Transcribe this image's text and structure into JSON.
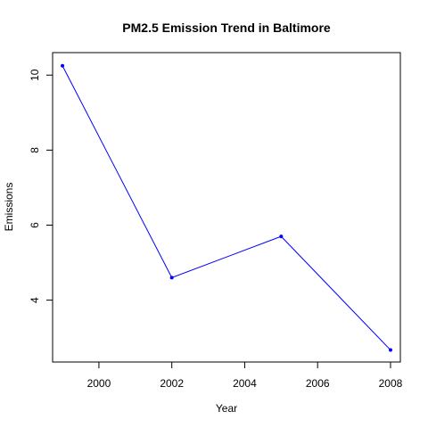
{
  "chart_data": {
    "type": "line",
    "title": "PM2.5 Emission Trend in Baltimore",
    "xlabel": "Year",
    "ylabel": "Emissions",
    "x": [
      1999,
      2002,
      2005,
      2008
    ],
    "series": [
      {
        "values": [
          10.25,
          4.6,
          5.7,
          2.67
        ],
        "color": "#0000ff"
      }
    ],
    "xlim": [
      1998.73,
      2008.27
    ],
    "ylim": [
      2.35,
      10.6
    ],
    "xticks": [
      2000,
      2002,
      2004,
      2006,
      2008
    ],
    "yticks": [
      4,
      6,
      8,
      10
    ],
    "grid": false,
    "legend": "none"
  }
}
